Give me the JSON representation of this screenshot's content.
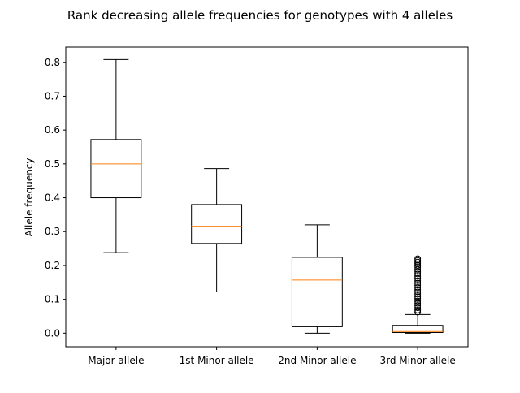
{
  "chart_data": {
    "type": "box",
    "title": "Rank decreasing allele frequencies for genotypes with 4 alleles",
    "xlabel": "",
    "ylabel": "Allele frequency",
    "ylim": [
      -0.04,
      0.845
    ],
    "yticks": [
      0.0,
      0.1,
      0.2,
      0.3,
      0.4,
      0.5,
      0.6,
      0.7,
      0.8
    ],
    "ytick_labels": [
      "0.0",
      "0.1",
      "0.2",
      "0.3",
      "0.4",
      "0.5",
      "0.6",
      "0.7",
      "0.8"
    ],
    "grid": false,
    "colors": {
      "box": "#000000",
      "median": "#ff7f0e",
      "background": "#ffffff"
    },
    "boxes": [
      {
        "label": "Major allele",
        "whisker_low": 0.238,
        "q1": 0.4,
        "median": 0.5,
        "q3": 0.572,
        "whisker_high": 0.808,
        "outliers": []
      },
      {
        "label": "1st Minor allele",
        "whisker_low": 0.122,
        "q1": 0.265,
        "median": 0.316,
        "q3": 0.38,
        "whisker_high": 0.486,
        "outliers": []
      },
      {
        "label": "2nd Minor allele",
        "whisker_low": 0.0,
        "q1": 0.019,
        "median": 0.157,
        "q3": 0.224,
        "whisker_high": 0.32,
        "outliers": []
      },
      {
        "label": "3rd Minor allele",
        "whisker_low": 0.0,
        "q1": 0.002,
        "median": 0.005,
        "q3": 0.023,
        "whisker_high": 0.055,
        "outliers": [
          0.062,
          0.068,
          0.075,
          0.082,
          0.088,
          0.095,
          0.102,
          0.108,
          0.115,
          0.122,
          0.128,
          0.135,
          0.142,
          0.148,
          0.155,
          0.162,
          0.168,
          0.175,
          0.182,
          0.188,
          0.195,
          0.2,
          0.205,
          0.21,
          0.215,
          0.22
        ]
      }
    ]
  }
}
